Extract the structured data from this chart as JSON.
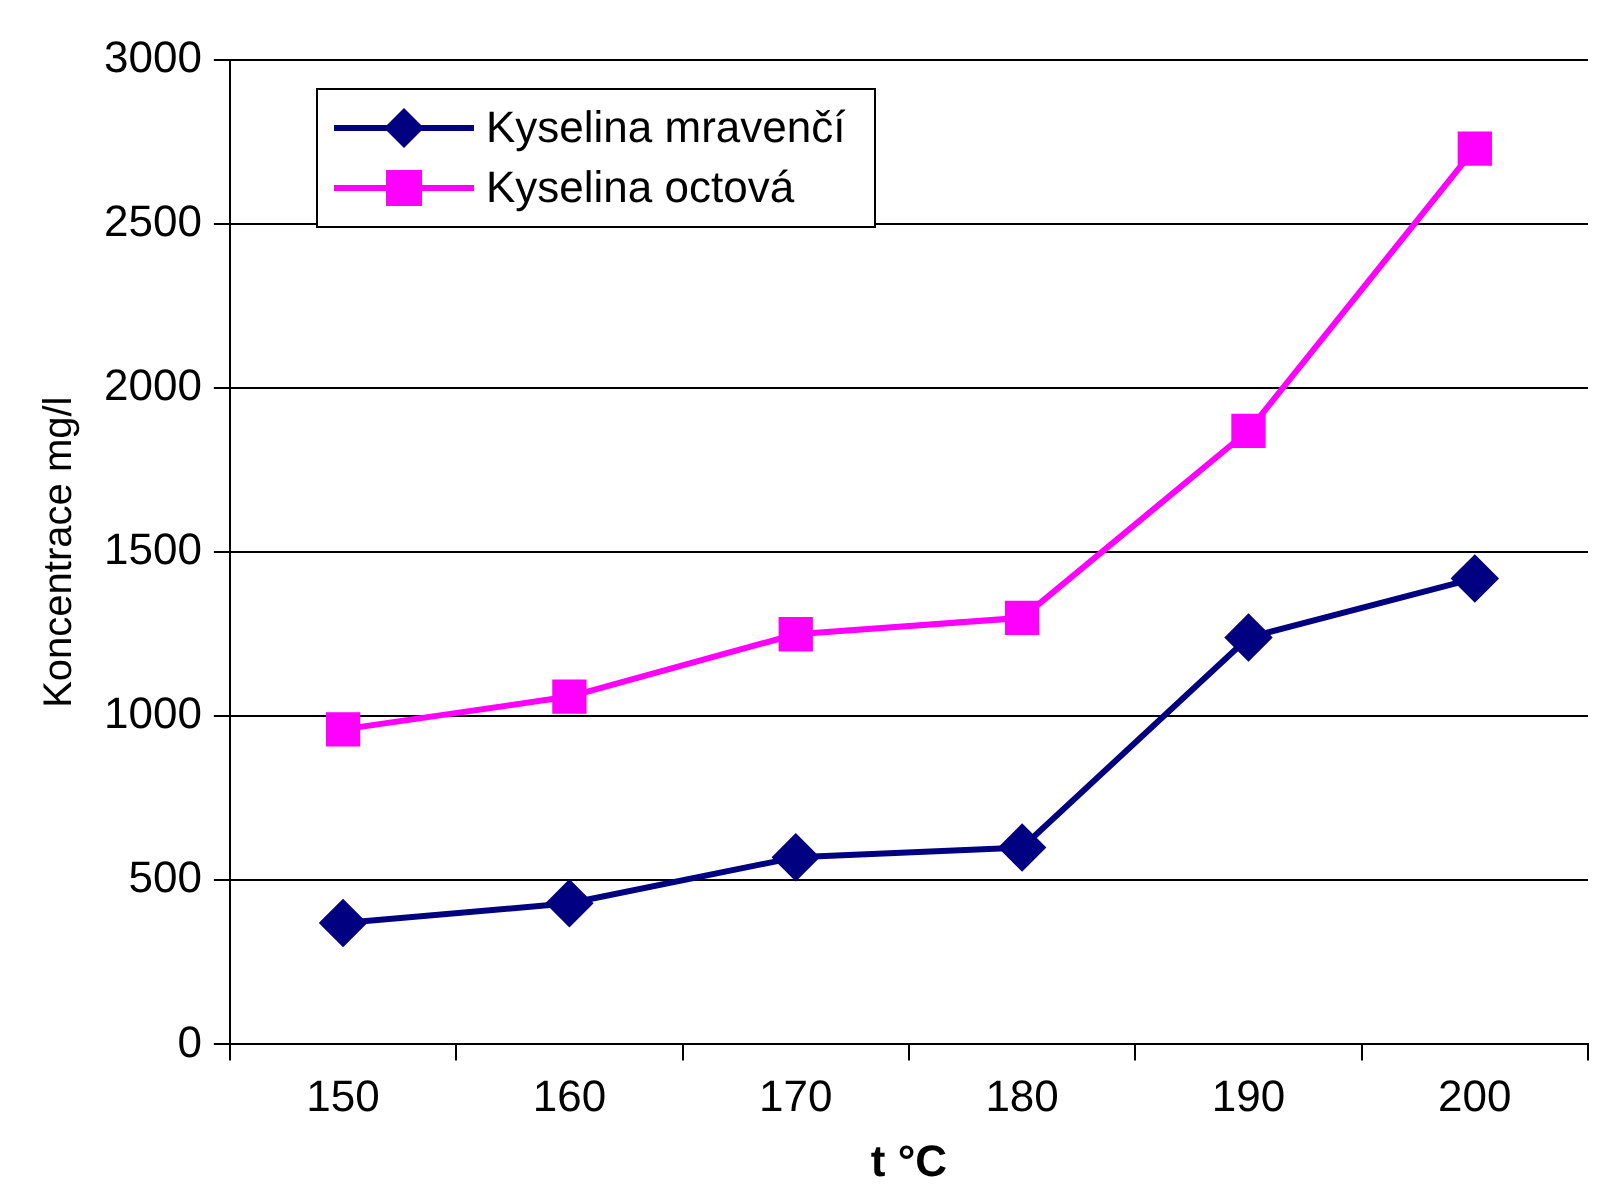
{
  "chart_data": {
    "type": "line",
    "xlabel": "t °C",
    "ylabel": "Koncentrace mg/l",
    "categories": [
      "150",
      "160",
      "170",
      "180",
      "190",
      "200"
    ],
    "series": [
      {
        "name": "Kyselina mravenčí",
        "color": "#000080",
        "marker": "diamond",
        "values": [
          370,
          430,
          570,
          600,
          1240,
          1420
        ]
      },
      {
        "name": "Kyselina octová",
        "color": "#ff00ff",
        "marker": "square",
        "values": [
          960,
          1060,
          1250,
          1300,
          1870,
          2730
        ]
      }
    ],
    "ylim": [
      0,
      3000
    ],
    "yticks": [
      0,
      500,
      1000,
      1500,
      2000,
      2500,
      3000
    ],
    "grid": "y",
    "legend": "top left",
    "line_style": "solid"
  }
}
